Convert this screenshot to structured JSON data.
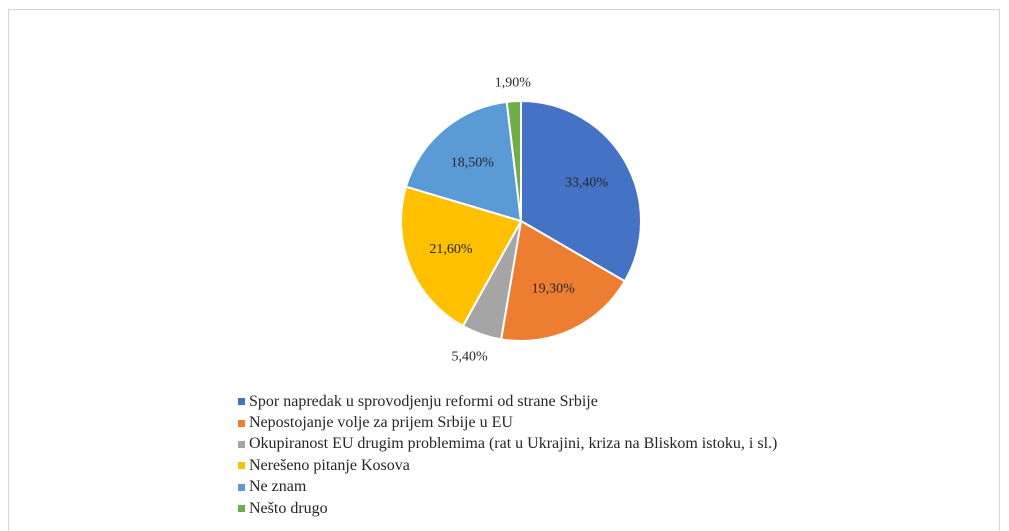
{
  "chart_data": {
    "type": "pie",
    "title": "",
    "slices": [
      {
        "label": "Spor napredak u sprovodjenju reformi od strane Srbije",
        "value": 33.4,
        "display": "33,40%",
        "color": "#4472c4",
        "label_pos": "inside"
      },
      {
        "label": "Nepostojanje volje za prijem Srbije u EU",
        "value": 19.3,
        "display": "19,30%",
        "color": "#ed7d31",
        "label_pos": "inside"
      },
      {
        "label": "Okupiranost EU drugim problemima (rat u Ukrajini, kriza na Bliskom istoku, i sl.)",
        "value": 5.4,
        "display": "5,40%",
        "color": "#a5a5a5",
        "label_pos": "outside"
      },
      {
        "label": "Nerešeno pitanje Kosova",
        "value": 21.6,
        "display": "21,60%",
        "color": "#ffc000",
        "label_pos": "inside"
      },
      {
        "label": "Ne znam",
        "value": 18.5,
        "display": "18,50%",
        "color": "#5b9bd5",
        "label_pos": "inside"
      },
      {
        "label": "Nešto drugo",
        "value": 1.9,
        "display": "1,90%",
        "color": "#70ad47",
        "label_pos": "outside"
      }
    ],
    "start_angle_deg": 0,
    "direction": "clockwise",
    "legend_position": "bottom"
  }
}
